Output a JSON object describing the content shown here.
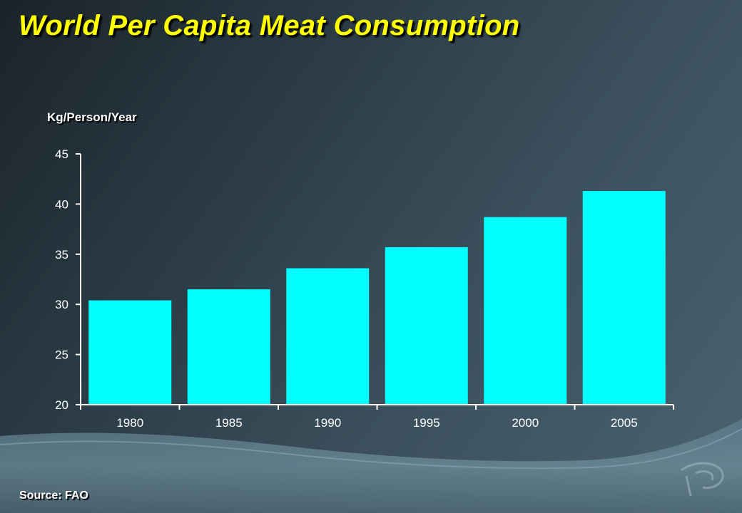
{
  "slide": {
    "title": "World Per Capita Meat Consumption",
    "source": "Source: FAO"
  },
  "colors": {
    "bar": "#00ffff",
    "title": "#ffff00",
    "axis": "#ffffff"
  },
  "chart_data": {
    "type": "bar",
    "title": "",
    "xlabel": "",
    "ylabel": "Kg/Person/Year",
    "categories": [
      "1980",
      "1985",
      "1990",
      "1995",
      "2000",
      "2005"
    ],
    "values": [
      30.4,
      31.5,
      33.6,
      35.7,
      38.7,
      41.3
    ],
    "ylim": [
      20,
      45
    ],
    "yticks": [
      "20",
      "25",
      "30",
      "35",
      "40",
      "45"
    ],
    "grid": false,
    "legend": "none"
  }
}
